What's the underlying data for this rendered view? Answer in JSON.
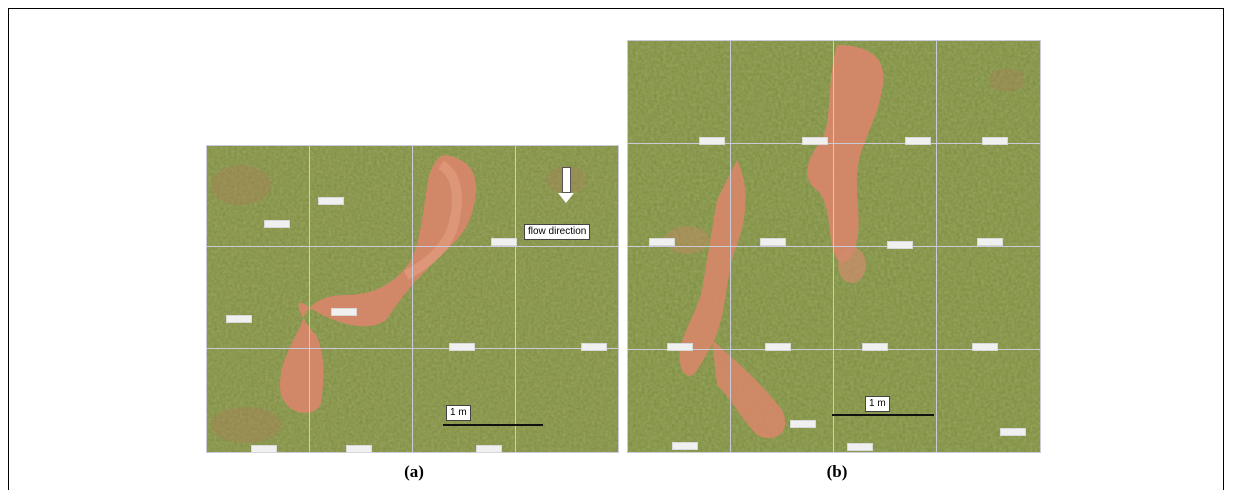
{
  "figure": {
    "panel_a": {
      "caption": "(a)",
      "flow_label": "flow direction",
      "scale_label": "1 m",
      "grid_rows": 3,
      "grid_cols": 4
    },
    "panel_b": {
      "caption": "(b)",
      "scale_label": "1 m",
      "grid_rows": 4,
      "grid_cols": 4
    }
  },
  "colors": {
    "grass_dark": "#5f6f2c",
    "grass_light": "#8f9a4e",
    "soil": "#d9866a",
    "grid_line": "#c9ccd8"
  }
}
